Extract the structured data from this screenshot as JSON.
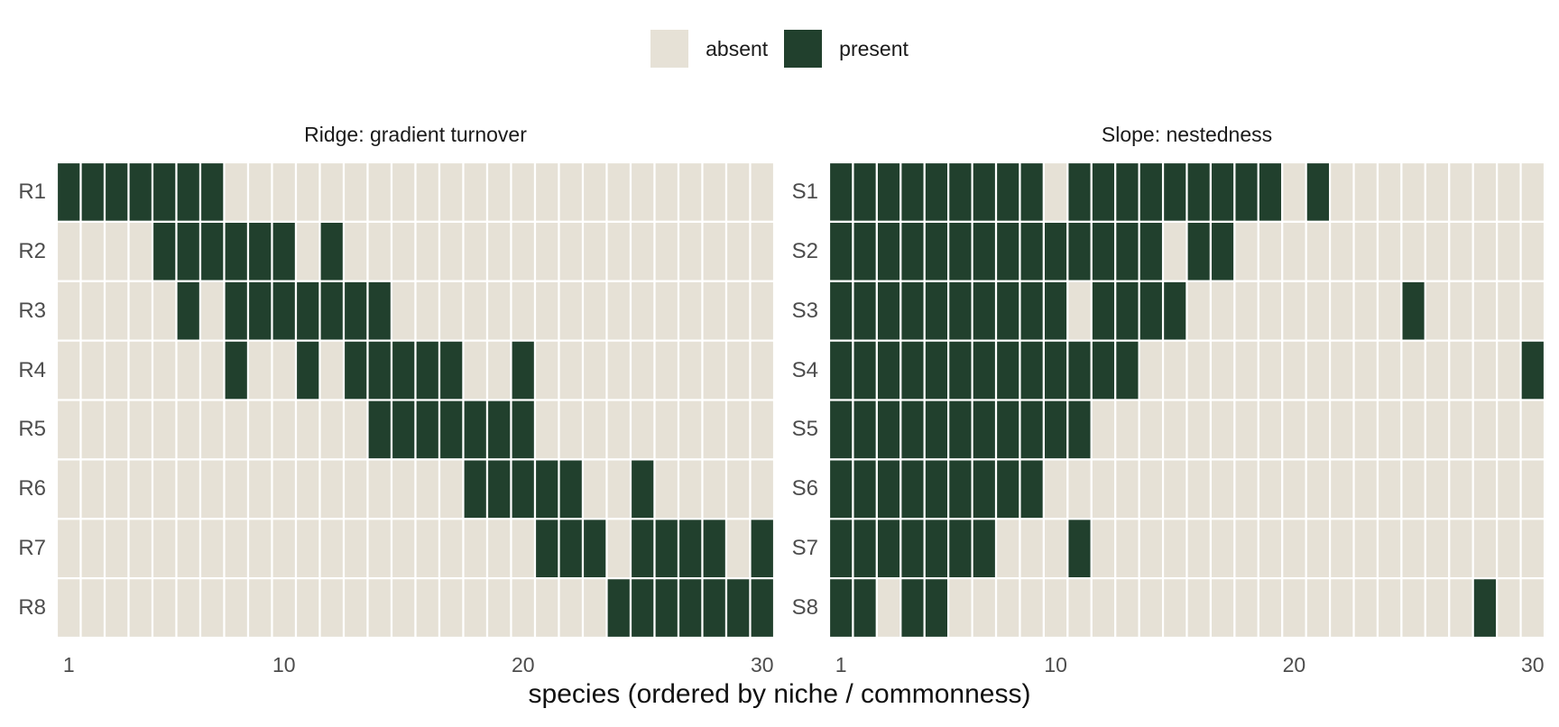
{
  "legend": {
    "absent_label": "absent",
    "present_label": "present"
  },
  "colors": {
    "absent": "#e6e1d6",
    "present": "#21402d",
    "cell_border": "#ffffff"
  },
  "chart_data": [
    {
      "type": "heatmap",
      "title": "Ridge: gradient turnover",
      "xlabel": "species (ordered by niche / commonness)",
      "xlim": [
        1,
        30
      ],
      "x_ticks": [
        "1",
        "10",
        "20",
        "30"
      ],
      "rows": [
        "R1",
        "R2",
        "R3",
        "R4",
        "R5",
        "R6",
        "R7",
        "R8"
      ],
      "present": {
        "R1": [
          1,
          2,
          3,
          4,
          5,
          6,
          7
        ],
        "R2": [
          5,
          6,
          7,
          8,
          9,
          10,
          12
        ],
        "R3": [
          6,
          8,
          9,
          10,
          11,
          12,
          13,
          14
        ],
        "R4": [
          8,
          11,
          13,
          14,
          15,
          16,
          17,
          20
        ],
        "R5": [
          14,
          15,
          16,
          17,
          18,
          19,
          20
        ],
        "R6": [
          18,
          19,
          20,
          21,
          22,
          25
        ],
        "R7": [
          21,
          22,
          23,
          25,
          26,
          27,
          28,
          30
        ],
        "R8": [
          24,
          25,
          26,
          27,
          28,
          29,
          30
        ]
      }
    },
    {
      "type": "heatmap",
      "title": "Slope: nestedness",
      "xlabel": "species (ordered by niche / commonness)",
      "xlim": [
        1,
        30
      ],
      "x_ticks": [
        "1",
        "10",
        "20",
        "30"
      ],
      "rows": [
        "S1",
        "S2",
        "S3",
        "S4",
        "S5",
        "S6",
        "S7",
        "S8"
      ],
      "present": {
        "S1": [
          1,
          2,
          3,
          4,
          5,
          6,
          7,
          8,
          9,
          11,
          12,
          13,
          14,
          15,
          16,
          17,
          18,
          19,
          21
        ],
        "S2": [
          1,
          2,
          3,
          4,
          5,
          6,
          7,
          8,
          9,
          10,
          11,
          12,
          13,
          14,
          16,
          17
        ],
        "S3": [
          1,
          2,
          3,
          4,
          5,
          6,
          7,
          8,
          9,
          10,
          12,
          13,
          14,
          15,
          25
        ],
        "S4": [
          1,
          2,
          3,
          4,
          5,
          6,
          7,
          8,
          9,
          10,
          11,
          12,
          13,
          30
        ],
        "S5": [
          1,
          2,
          3,
          4,
          5,
          6,
          7,
          8,
          9,
          10,
          11
        ],
        "S6": [
          1,
          2,
          3,
          4,
          5,
          6,
          7,
          8,
          9
        ],
        "S7": [
          1,
          2,
          3,
          4,
          5,
          6,
          7,
          11
        ],
        "S8": [
          1,
          2,
          4,
          5,
          28
        ]
      }
    }
  ]
}
